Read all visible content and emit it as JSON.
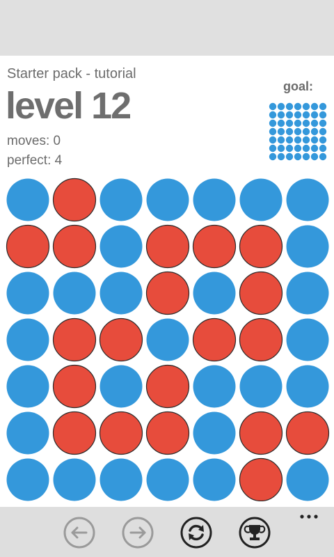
{
  "header": {
    "pack_title": "Starter pack - tutorial",
    "level_title": "level 12",
    "moves_text": "moves: 0",
    "perfect_text": "perfect: 4",
    "goal_label": "goal:"
  },
  "colors": {
    "blue": "#3498db",
    "red": "#e74c3c",
    "status_bar": "#e0e0e0",
    "app_bar": "#dedede",
    "icon_enabled": "#222222",
    "icon_disabled": "#9a9a9a"
  },
  "board": {
    "rows": 7,
    "cols": 7,
    "cells": [
      [
        "blue",
        "red",
        "blue",
        "blue",
        "blue",
        "blue",
        "blue"
      ],
      [
        "red",
        "red",
        "blue",
        "red",
        "red",
        "red",
        "blue"
      ],
      [
        "blue",
        "blue",
        "blue",
        "red",
        "blue",
        "red",
        "blue"
      ],
      [
        "blue",
        "red",
        "red",
        "blue",
        "red",
        "red",
        "blue"
      ],
      [
        "blue",
        "red",
        "blue",
        "red",
        "blue",
        "blue",
        "blue"
      ],
      [
        "blue",
        "red",
        "red",
        "red",
        "blue",
        "red",
        "red"
      ],
      [
        "blue",
        "blue",
        "blue",
        "blue",
        "blue",
        "red",
        "blue"
      ]
    ]
  },
  "goal": {
    "rows": 7,
    "cols": 7,
    "color": "blue"
  },
  "app_bar": {
    "buttons": [
      {
        "name": "back-button",
        "icon": "arrow-left-icon",
        "enabled": false
      },
      {
        "name": "forward-button",
        "icon": "arrow-right-icon",
        "enabled": false
      },
      {
        "name": "restart-button",
        "icon": "refresh-icon",
        "enabled": true
      },
      {
        "name": "trophy-button",
        "icon": "trophy-icon",
        "enabled": true
      }
    ],
    "more_icon": "ellipsis-icon"
  }
}
